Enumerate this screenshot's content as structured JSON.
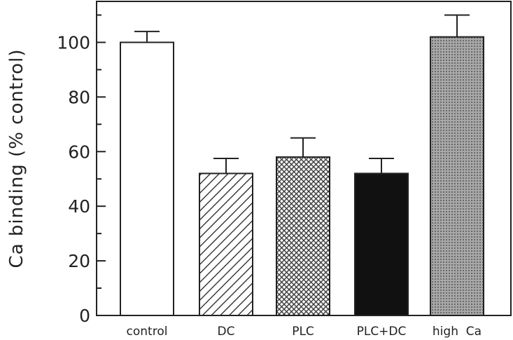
{
  "chart_data": {
    "type": "bar",
    "categories": [
      "control",
      "DC",
      "PLC",
      "PLC+DC",
      "high  Ca"
    ],
    "values": [
      100,
      52,
      58,
      52,
      102
    ],
    "errors": [
      4,
      5.5,
      7,
      5.5,
      8
    ],
    "fills": [
      "white",
      "diagonal-hatch",
      "cross-hatch",
      "black",
      "dotted-gray"
    ],
    "title": "",
    "xlabel": "",
    "ylabel": "Ca binding (% control)",
    "ylim": [
      0,
      115
    ],
    "yticks": [
      0,
      20,
      40,
      60,
      80,
      100
    ],
    "yticks_minor": [
      10,
      30,
      50,
      70,
      90,
      110
    ],
    "grid": false,
    "error_bars": "upper-only"
  }
}
